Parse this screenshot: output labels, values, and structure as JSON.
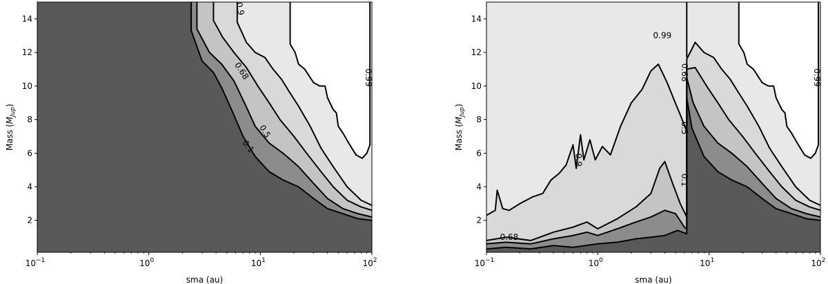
{
  "chart_data": [
    {
      "type": "contour",
      "xlabel": "sma (au)",
      "ylabel": "Mass (M_jup)",
      "ylabel_main": "Mass (",
      "ylabel_symbol": "M",
      "ylabel_sub": "Jup",
      "ylabel_end": ")",
      "xscale": "log",
      "xlim": [
        0.1,
        100
      ],
      "ylim": [
        0.1,
        15
      ],
      "x_ticks": [
        {
          "base": "10",
          "exp": "−1",
          "value": 0.1
        },
        {
          "base": "10",
          "exp": "0",
          "value": 1
        },
        {
          "base": "10",
          "exp": "1",
          "value": 10
        },
        {
          "base": "10",
          "exp": "2",
          "value": 100
        }
      ],
      "y_ticks": [
        "2",
        "4",
        "6",
        "8",
        "10",
        "12",
        "14"
      ],
      "levels": [
        0.1,
        0.5,
        0.68,
        0.9,
        0.99
      ],
      "fill_colors": [
        "#595959",
        "#8c8c8c",
        "#c4c4c4",
        "#d9d9d9",
        "#e8e8e8",
        "#ffffff"
      ],
      "contours": [
        {
          "level": "0.1",
          "points": [
            [
              2.4,
              15
            ],
            [
              2.4,
              13.3
            ],
            [
              3.0,
              11.5
            ],
            [
              3.8,
              10.8
            ],
            [
              4.5,
              9.9
            ],
            [
              5.6,
              8.5
            ],
            [
              7.0,
              7.0
            ],
            [
              9.0,
              5.8
            ],
            [
              12.0,
              4.9
            ],
            [
              16.0,
              4.4
            ],
            [
              22.0,
              4.0
            ],
            [
              30.0,
              3.3
            ],
            [
              40.0,
              2.7
            ],
            [
              55.0,
              2.4
            ],
            [
              75.0,
              2.1
            ],
            [
              100.0,
              2.0
            ]
          ]
        },
        {
          "level": "0.5",
          "points": [
            [
              2.7,
              15
            ],
            [
              2.7,
              13.4
            ],
            [
              3.5,
              12.0
            ],
            [
              4.5,
              11.3
            ],
            [
              5.8,
              10.3
            ],
            [
              7.2,
              9.0
            ],
            [
              9.0,
              7.6
            ],
            [
              12.0,
              6.6
            ],
            [
              16.0,
              6.0
            ],
            [
              22.0,
              5.2
            ],
            [
              30.0,
              4.2
            ],
            [
              40.0,
              3.3
            ],
            [
              55.0,
              2.7
            ],
            [
              75.0,
              2.4
            ],
            [
              100.0,
              2.2
            ]
          ]
        },
        {
          "level": "0.68",
          "points": [
            [
              3.8,
              15
            ],
            [
              3.8,
              13.9
            ],
            [
              4.6,
              12.9
            ],
            [
              5.8,
              12.0
            ],
            [
              7.5,
              11.1
            ],
            [
              9.5,
              10.0
            ],
            [
              12.0,
              9.0
            ],
            [
              15.0,
              8.0
            ],
            [
              20.0,
              7.0
            ],
            [
              26.0,
              6.0
            ],
            [
              35.0,
              4.9
            ],
            [
              45.0,
              4.0
            ],
            [
              60.0,
              3.2
            ],
            [
              80.0,
              2.8
            ],
            [
              100.0,
              2.6
            ]
          ]
        },
        {
          "level": "0.9",
          "points": [
            [
              6.2,
              15
            ],
            [
              6.2,
              13.8
            ],
            [
              7.5,
              12.6
            ],
            [
              9.0,
              12.0
            ],
            [
              11.0,
              11.7
            ],
            [
              13.0,
              11.0
            ],
            [
              15.5,
              10.4
            ],
            [
              18.0,
              9.7
            ],
            [
              22.0,
              8.8
            ],
            [
              28.0,
              7.6
            ],
            [
              35.0,
              6.3
            ],
            [
              45.0,
              5.2
            ],
            [
              60.0,
              4.0
            ],
            [
              80.0,
              3.2
            ],
            [
              100.0,
              2.9
            ]
          ]
        },
        {
          "level": "0.99",
          "points": [
            [
              18.5,
              15
            ],
            [
              18.5,
              12.5
            ],
            [
              20.5,
              12.0
            ],
            [
              22.0,
              11.3
            ],
            [
              25.0,
              11.0
            ],
            [
              28.0,
              10.5
            ],
            [
              30.0,
              10.2
            ],
            [
              34.0,
              10.0
            ],
            [
              38.0,
              10.0
            ],
            [
              40.0,
              9.3
            ],
            [
              45.0,
              8.6
            ],
            [
              48.0,
              8.4
            ],
            [
              50.0,
              7.6
            ],
            [
              55.0,
              7.2
            ],
            [
              62.0,
              6.6
            ],
            [
              72.0,
              5.9
            ],
            [
              82.0,
              5.7
            ],
            [
              90.0,
              6.0
            ],
            [
              96.0,
              6.5
            ],
            [
              96.0,
              15
            ]
          ]
        }
      ],
      "contour_labels": [
        {
          "text": "0.9",
          "x": 6.6,
          "y": 14.6,
          "angle": 80
        },
        {
          "text": "0.68",
          "x": 6.8,
          "y": 10.9,
          "angle": 57
        },
        {
          "text": "0.5",
          "x": 11.0,
          "y": 7.3,
          "angle": 58
        },
        {
          "text": "0.1",
          "x": 7.8,
          "y": 6.4,
          "angle": 52
        },
        {
          "text": "0.99",
          "x": 93.0,
          "y": 10.5,
          "angle": 90
        }
      ]
    },
    {
      "type": "contour",
      "xlabel": "sma (au)",
      "ylabel": "Mass (M_jup)",
      "ylabel_main": "Mass (",
      "ylabel_symbol": "M",
      "ylabel_sub": "Jup",
      "ylabel_end": ")",
      "xscale": "log",
      "xlim": [
        0.1,
        100
      ],
      "ylim": [
        0.1,
        15
      ],
      "x_ticks": [
        {
          "base": "10",
          "exp": "−1",
          "value": 0.1
        },
        {
          "base": "10",
          "exp": "0",
          "value": 1
        },
        {
          "base": "10",
          "exp": "1",
          "value": 10
        },
        {
          "base": "10",
          "exp": "2",
          "value": 100
        }
      ],
      "y_ticks": [
        "2",
        "4",
        "6",
        "8",
        "10",
        "12",
        "14"
      ],
      "levels": [
        0.1,
        0.5,
        0.68,
        0.9,
        0.99
      ],
      "fill_colors": [
        "#595959",
        "#8c8c8c",
        "#c4c4c4",
        "#d9d9d9",
        "#e8e8e8",
        "#ffffff"
      ],
      "contours": [
        {
          "level": "0.1",
          "points": [
            [
              0.1,
              0.3
            ],
            [
              0.15,
              0.4
            ],
            [
              0.25,
              0.3
            ],
            [
              0.4,
              0.5
            ],
            [
              0.6,
              0.4
            ],
            [
              1.0,
              0.6
            ],
            [
              1.5,
              0.7
            ],
            [
              2.2,
              0.9
            ],
            [
              3.0,
              1.0
            ],
            [
              4.0,
              1.1
            ],
            [
              5.2,
              1.4
            ],
            [
              6.3,
              1.2
            ],
            [
              6.3,
              9.3
            ],
            [
              7.0,
              7.5
            ],
            [
              9.0,
              5.8
            ],
            [
              12.0,
              4.9
            ],
            [
              16.0,
              4.4
            ],
            [
              22.0,
              4.0
            ],
            [
              30.0,
              3.3
            ],
            [
              40.0,
              2.7
            ],
            [
              55.0,
              2.4
            ],
            [
              75.0,
              2.1
            ],
            [
              100.0,
              2.0
            ]
          ]
        },
        {
          "level": "0.5",
          "points": [
            [
              0.1,
              0.6
            ],
            [
              0.15,
              0.7
            ],
            [
              0.25,
              0.6
            ],
            [
              0.4,
              0.9
            ],
            [
              0.6,
              1.1
            ],
            [
              0.8,
              1.3
            ],
            [
              1.0,
              1.1
            ],
            [
              1.5,
              1.5
            ],
            [
              2.2,
              1.9
            ],
            [
              3.0,
              2.2
            ],
            [
              4.0,
              2.6
            ],
            [
              5.0,
              2.4
            ],
            [
              6.0,
              1.6
            ],
            [
              6.3,
              1.5
            ],
            [
              6.3,
              10.5
            ],
            [
              7.2,
              9.0
            ],
            [
              9.0,
              7.6
            ],
            [
              12.0,
              6.6
            ],
            [
              16.0,
              6.0
            ],
            [
              22.0,
              5.2
            ],
            [
              30.0,
              4.2
            ],
            [
              40.0,
              3.3
            ],
            [
              55.0,
              2.7
            ],
            [
              75.0,
              2.4
            ],
            [
              100.0,
              2.2
            ]
          ]
        },
        {
          "level": "0.68",
          "points": [
            [
              0.1,
              0.8
            ],
            [
              0.15,
              1.0
            ],
            [
              0.25,
              0.8
            ],
            [
              0.4,
              1.3
            ],
            [
              0.6,
              1.6
            ],
            [
              0.8,
              1.9
            ],
            [
              1.0,
              1.5
            ],
            [
              1.5,
              2.1
            ],
            [
              2.2,
              2.8
            ],
            [
              3.0,
              3.6
            ],
            [
              3.6,
              5.1
            ],
            [
              4.0,
              5.5
            ],
            [
              4.7,
              4.2
            ],
            [
              5.5,
              3.0
            ],
            [
              6.3,
              2.2
            ],
            [
              6.3,
              11.0
            ],
            [
              7.5,
              11.1
            ],
            [
              9.5,
              10.0
            ],
            [
              12.0,
              9.0
            ],
            [
              15.0,
              8.0
            ],
            [
              20.0,
              7.0
            ],
            [
              26.0,
              6.0
            ],
            [
              35.0,
              4.9
            ],
            [
              45.0,
              4.0
            ],
            [
              60.0,
              3.2
            ],
            [
              80.0,
              2.8
            ],
            [
              100.0,
              2.6
            ]
          ]
        },
        {
          "level": "0.9",
          "points": [
            [
              0.1,
              2.3
            ],
            [
              0.12,
              2.6
            ],
            [
              0.125,
              3.8
            ],
            [
              0.14,
              2.7
            ],
            [
              0.16,
              2.6
            ],
            [
              0.2,
              3.0
            ],
            [
              0.26,
              3.4
            ],
            [
              0.32,
              3.6
            ],
            [
              0.38,
              4.4
            ],
            [
              0.45,
              4.8
            ],
            [
              0.52,
              5.3
            ],
            [
              0.6,
              6.5
            ],
            [
              0.64,
              5.1
            ],
            [
              0.7,
              7.1
            ],
            [
              0.75,
              5.6
            ],
            [
              0.85,
              6.8
            ],
            [
              0.95,
              5.6
            ],
            [
              1.1,
              6.4
            ],
            [
              1.3,
              5.9
            ],
            [
              1.6,
              7.6
            ],
            [
              2.0,
              9.0
            ],
            [
              2.5,
              9.8
            ],
            [
              3.0,
              10.9
            ],
            [
              3.5,
              11.3
            ],
            [
              4.2,
              10.2
            ],
            [
              4.9,
              9.1
            ],
            [
              5.5,
              8.3
            ],
            [
              6.3,
              7.3
            ],
            [
              6.3,
              11.6
            ],
            [
              7.5,
              12.6
            ],
            [
              9.0,
              12.0
            ],
            [
              11.0,
              11.7
            ],
            [
              13.0,
              11.0
            ],
            [
              15.5,
              10.4
            ],
            [
              18.0,
              9.7
            ],
            [
              22.0,
              8.8
            ],
            [
              28.0,
              7.6
            ],
            [
              35.0,
              6.3
            ],
            [
              45.0,
              5.2
            ],
            [
              60.0,
              4.0
            ],
            [
              80.0,
              3.2
            ],
            [
              100.0,
              2.9
            ]
          ]
        },
        {
          "level": "0.99",
          "points": [
            [
              18.5,
              15
            ],
            [
              18.5,
              12.5
            ],
            [
              20.5,
              12.0
            ],
            [
              22.0,
              11.3
            ],
            [
              25.0,
              11.0
            ],
            [
              28.0,
              10.5
            ],
            [
              30.0,
              10.2
            ],
            [
              34.0,
              10.0
            ],
            [
              38.0,
              10.0
            ],
            [
              40.0,
              9.3
            ],
            [
              45.0,
              8.6
            ],
            [
              48.0,
              8.4
            ],
            [
              50.0,
              7.6
            ],
            [
              55.0,
              7.2
            ],
            [
              62.0,
              6.6
            ],
            [
              72.0,
              5.9
            ],
            [
              82.0,
              5.7
            ],
            [
              90.0,
              6.0
            ],
            [
              96.0,
              6.5
            ],
            [
              96.0,
              15
            ]
          ]
        },
        {
          "level": "0.99",
          "points": [
            [
              6.3,
              15
            ],
            [
              6.3,
              11.7
            ]
          ]
        }
      ],
      "contour_labels": [
        {
          "text": "0.99",
          "x": 3.8,
          "y": 13.0,
          "angle": 0
        },
        {
          "text": "0.68",
          "x": 0.16,
          "y": 1.0,
          "angle": 0
        },
        {
          "text": "0.9",
          "x": 0.67,
          "y": 5.6,
          "angle": 90
        },
        {
          "text": "0.5",
          "x": 6.0,
          "y": 7.5,
          "angle": 90
        },
        {
          "text": "0.1",
          "x": 6.0,
          "y": 4.4,
          "angle": 90
        },
        {
          "text": "0.68",
          "x": 6.0,
          "y": 10.8,
          "angle": 90
        },
        {
          "text": "0.99",
          "x": 93.0,
          "y": 10.5,
          "angle": 90
        }
      ]
    }
  ]
}
